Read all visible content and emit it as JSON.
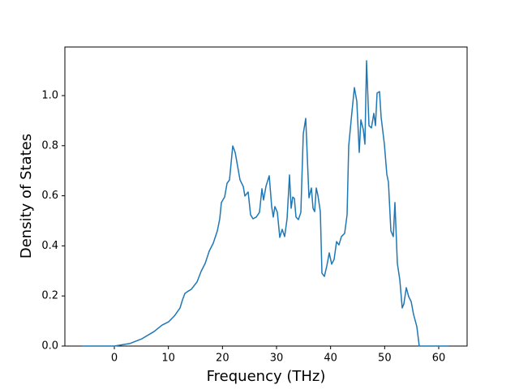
{
  "chart_data": {
    "type": "line",
    "xlabel": "Frequency (THz)",
    "ylabel": "Density of States",
    "xlim": [
      -9.15,
      65.25
    ],
    "ylim": [
      0,
      1.194
    ],
    "xticks": [
      0,
      10,
      20,
      30,
      40,
      50,
      60
    ],
    "yticks": [
      {
        "value": 0,
        "label": "0.0"
      },
      0.2,
      0.4,
      0.6,
      0.8,
      {
        "value": 1,
        "label": "1.0"
      }
    ],
    "series": [
      {
        "color": "#1f77b4",
        "x": [
          -6.0,
          0,
          2.85,
          5.1,
          7.35,
          8.85,
          10.05,
          11.1,
          12.15,
          12.6,
          13.05,
          13.5,
          14.25,
          15.3,
          16.05,
          16.8,
          17.55,
          18.3,
          19.05,
          19.5,
          19.8,
          20.4,
          20.85,
          21.3,
          21.9,
          22.35,
          22.8,
          23.25,
          23.85,
          24.15,
          24.75,
          25.2,
          25.65,
          26.25,
          26.85,
          27.3,
          27.6,
          28.05,
          28.65,
          29.1,
          29.4,
          29.7,
          30.15,
          30.6,
          31.05,
          31.5,
          31.95,
          32.4,
          32.7,
          33.0,
          33.3,
          33.6,
          34.05,
          34.5,
          34.95,
          35.4,
          36.0,
          36.45,
          36.75,
          37.05,
          37.35,
          37.65,
          38.1,
          38.4,
          38.85,
          39.3,
          39.75,
          40.2,
          40.65,
          41.1,
          41.55,
          42.0,
          42.6,
          43.05,
          43.35,
          43.95,
          44.4,
          44.85,
          45.3,
          45.6,
          46.05,
          46.35,
          46.65,
          47.1,
          47.55,
          48.0,
          48.3,
          48.6,
          49.05,
          49.35,
          49.95,
          50.4,
          50.7,
          51.15,
          51.6,
          51.9,
          52.35,
          52.8,
          53.25,
          53.55,
          54.0,
          54.45,
          54.9,
          55.35,
          55.95,
          56.4,
          61.8
        ],
        "values": [
          0,
          0,
          0.01,
          0.029,
          0.058,
          0.084,
          0.097,
          0.12,
          0.152,
          0.184,
          0.21,
          0.217,
          0.227,
          0.256,
          0.298,
          0.33,
          0.379,
          0.411,
          0.46,
          0.508,
          0.573,
          0.595,
          0.65,
          0.663,
          0.799,
          0.773,
          0.718,
          0.663,
          0.637,
          0.599,
          0.615,
          0.524,
          0.508,
          0.515,
          0.534,
          0.628,
          0.583,
          0.638,
          0.68,
          0.557,
          0.515,
          0.557,
          0.534,
          0.434,
          0.466,
          0.437,
          0.508,
          0.683,
          0.55,
          0.595,
          0.589,
          0.515,
          0.505,
          0.534,
          0.848,
          0.909,
          0.592,
          0.631,
          0.55,
          0.537,
          0.631,
          0.602,
          0.537,
          0.291,
          0.278,
          0.32,
          0.372,
          0.327,
          0.346,
          0.417,
          0.404,
          0.437,
          0.45,
          0.524,
          0.799,
          0.935,
          1.032,
          0.977,
          0.773,
          0.903,
          0.864,
          0.806,
          1.139,
          0.88,
          0.871,
          0.929,
          0.88,
          1.01,
          1.016,
          0.913,
          0.806,
          0.686,
          0.654,
          0.46,
          0.437,
          0.573,
          0.33,
          0.265,
          0.152,
          0.168,
          0.233,
          0.197,
          0.178,
          0.126,
          0.078,
          0,
          0
        ]
      }
    ]
  }
}
